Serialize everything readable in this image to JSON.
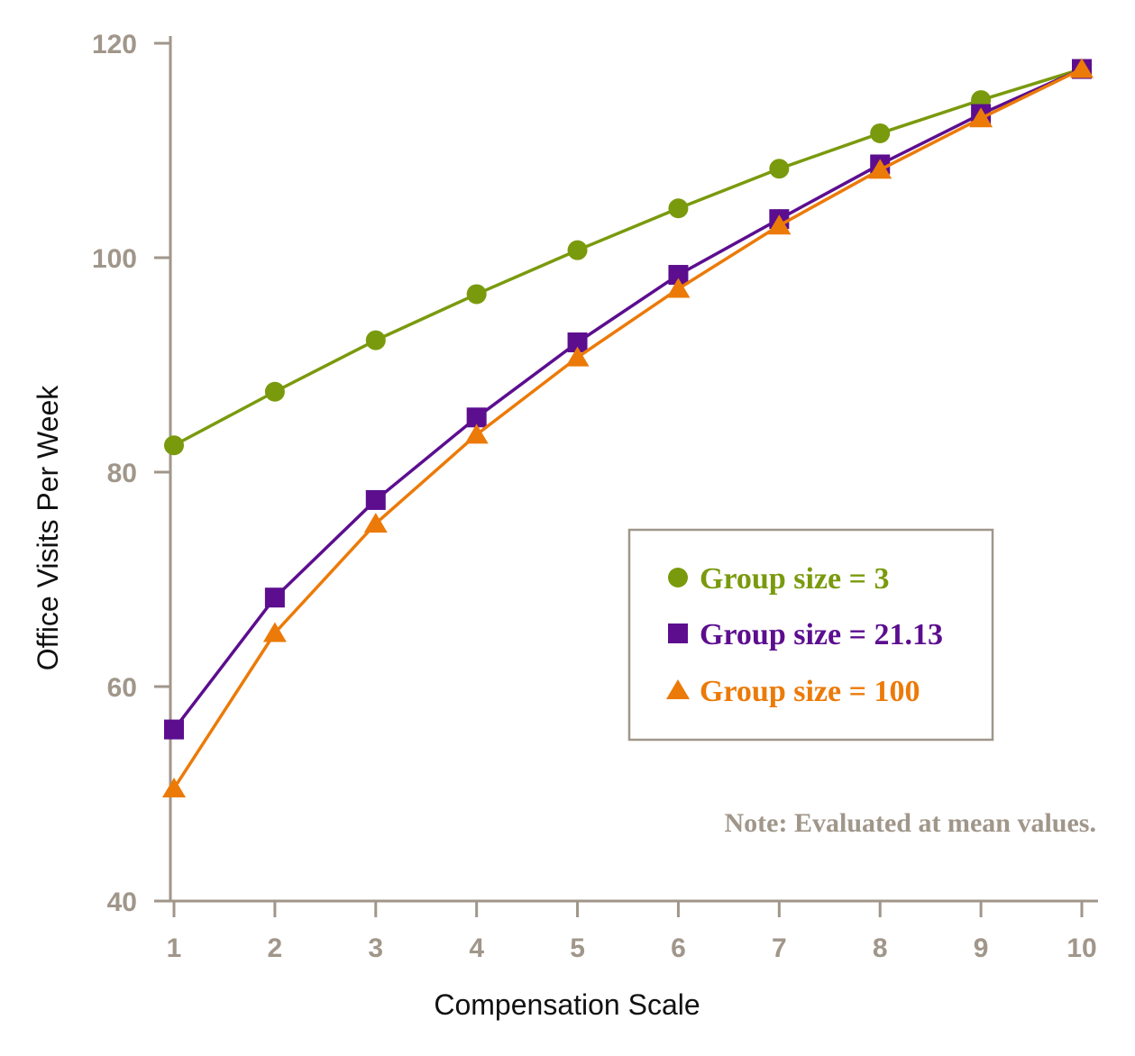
{
  "chart_data": {
    "type": "line",
    "title": "",
    "xlabel": "Compensation Scale",
    "ylabel": "Office Visits Per Week",
    "x": [
      1,
      2,
      3,
      4,
      5,
      6,
      7,
      8,
      9,
      10
    ],
    "xlim": [
      1,
      10
    ],
    "ylim": [
      40,
      120
    ],
    "yticks": [
      40,
      60,
      80,
      100,
      120
    ],
    "grid": false,
    "legend_position": "center-right",
    "note": "Note: Evaluated at mean values.",
    "series": [
      {
        "name": "Group size = 3",
        "color": "#7a9a0d",
        "marker": "circle",
        "values": [
          82.5,
          87.5,
          92.3,
          96.6,
          100.7,
          104.6,
          108.3,
          111.6,
          114.7,
          117.6
        ]
      },
      {
        "name": "Group size = 21.13",
        "color": "#5c0e8f",
        "marker": "square",
        "values": [
          56.0,
          68.3,
          77.4,
          85.1,
          92.1,
          98.4,
          103.6,
          108.7,
          113.4,
          117.6
        ]
      },
      {
        "name": "Group size = 100",
        "color": "#ec7a08",
        "marker": "triangle",
        "values": [
          50.5,
          65.0,
          75.2,
          83.5,
          90.7,
          97.1,
          103.0,
          108.2,
          113.0,
          117.6
        ]
      }
    ]
  }
}
